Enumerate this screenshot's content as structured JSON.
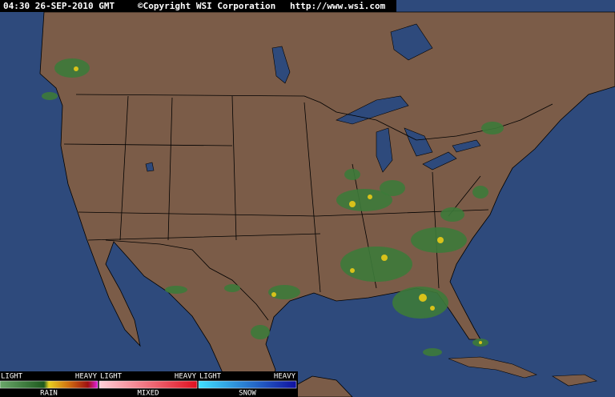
{
  "header": {
    "time": "04:30 26-SEP-2010 GMT",
    "copyright": "©Copyright WSI Corporation",
    "url": "http://www.wsi.com"
  },
  "legend": [
    {
      "low": "LIGHT",
      "high": "HEAVY",
      "label": "RAIN"
    },
    {
      "low": "LIGHT",
      "high": "HEAVY",
      "label": "MIXED"
    },
    {
      "low": "LIGHT",
      "high": "HEAVY",
      "label": "SNOW"
    }
  ]
}
